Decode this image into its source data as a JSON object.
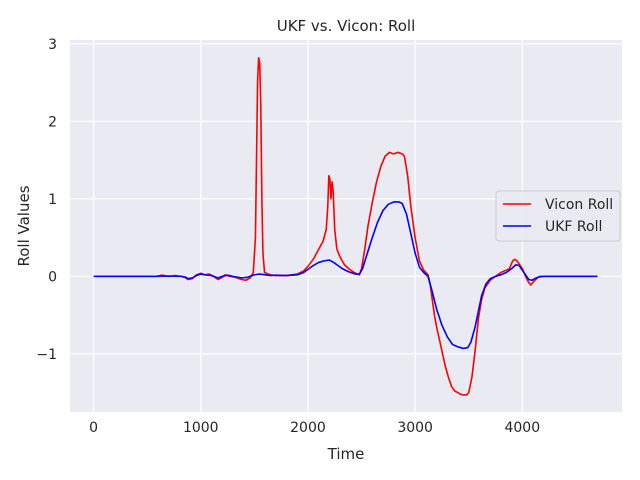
{
  "chart_data": {
    "type": "line",
    "title": "UKF vs. Vicon: Roll",
    "xlabel": "Time",
    "ylabel": "Roll Values",
    "xlim": [
      -220,
      4930
    ],
    "ylim": [
      -1.75,
      3.05
    ],
    "xticks": [
      0,
      1000,
      2000,
      3000,
      4000
    ],
    "xtick_labels": [
      "0",
      "1000",
      "2000",
      "3000",
      "4000"
    ],
    "yticks": [
      -1,
      0,
      1,
      2,
      3
    ],
    "ytick_labels": [
      "−1",
      "0",
      "1",
      "2",
      "3"
    ],
    "grid": true,
    "legend_position": "center-right",
    "series": [
      {
        "name": "Vicon Roll",
        "color": "#ff0000",
        "points": [
          [
            0,
            0.0
          ],
          [
            580,
            0.0
          ],
          [
            640,
            0.015
          ],
          [
            700,
            0.0
          ],
          [
            760,
            0.01
          ],
          [
            820,
            0.0
          ],
          [
            860,
            -0.02
          ],
          [
            880,
            -0.04
          ],
          [
            920,
            -0.03
          ],
          [
            960,
            0.02
          ],
          [
            1000,
            0.04
          ],
          [
            1040,
            0.02
          ],
          [
            1080,
            0.03
          ],
          [
            1120,
            0.0
          ],
          [
            1160,
            -0.04
          ],
          [
            1190,
            -0.02
          ],
          [
            1230,
            0.02
          ],
          [
            1270,
            0.0
          ],
          [
            1320,
            -0.01
          ],
          [
            1380,
            -0.04
          ],
          [
            1420,
            -0.05
          ],
          [
            1460,
            -0.02
          ],
          [
            1490,
            0.05
          ],
          [
            1510,
            0.5
          ],
          [
            1520,
            1.5
          ],
          [
            1530,
            2.5
          ],
          [
            1540,
            2.82
          ],
          [
            1550,
            2.75
          ],
          [
            1560,
            2.2
          ],
          [
            1570,
            1.0
          ],
          [
            1580,
            0.3
          ],
          [
            1595,
            0.05
          ],
          [
            1650,
            0.02
          ],
          [
            1700,
            0.01
          ],
          [
            1800,
            0.01
          ],
          [
            1900,
            0.03
          ],
          [
            1960,
            0.07
          ],
          [
            2000,
            0.13
          ],
          [
            2050,
            0.22
          ],
          [
            2100,
            0.35
          ],
          [
            2140,
            0.45
          ],
          [
            2170,
            0.6
          ],
          [
            2185,
            0.9
          ],
          [
            2195,
            1.3
          ],
          [
            2205,
            1.25
          ],
          [
            2215,
            1.0
          ],
          [
            2225,
            1.22
          ],
          [
            2235,
            1.1
          ],
          [
            2250,
            0.6
          ],
          [
            2270,
            0.35
          ],
          [
            2300,
            0.25
          ],
          [
            2340,
            0.15
          ],
          [
            2380,
            0.1
          ],
          [
            2420,
            0.06
          ],
          [
            2460,
            0.03
          ],
          [
            2480,
            0.02
          ],
          [
            2500,
            0.1
          ],
          [
            2530,
            0.35
          ],
          [
            2560,
            0.65
          ],
          [
            2600,
            0.95
          ],
          [
            2640,
            1.22
          ],
          [
            2680,
            1.42
          ],
          [
            2720,
            1.55
          ],
          [
            2760,
            1.6
          ],
          [
            2800,
            1.58
          ],
          [
            2840,
            1.6
          ],
          [
            2880,
            1.58
          ],
          [
            2900,
            1.55
          ],
          [
            2930,
            1.3
          ],
          [
            2960,
            0.9
          ],
          [
            3000,
            0.5
          ],
          [
            3040,
            0.2
          ],
          [
            3080,
            0.08
          ],
          [
            3120,
            0.02
          ],
          [
            3140,
            -0.1
          ],
          [
            3160,
            -0.3
          ],
          [
            3180,
            -0.5
          ],
          [
            3200,
            -0.65
          ],
          [
            3240,
            -0.9
          ],
          [
            3280,
            -1.15
          ],
          [
            3310,
            -1.3
          ],
          [
            3340,
            -1.42
          ],
          [
            3370,
            -1.48
          ],
          [
            3400,
            -1.5
          ],
          [
            3420,
            -1.52
          ],
          [
            3450,
            -1.53
          ],
          [
            3480,
            -1.53
          ],
          [
            3500,
            -1.5
          ],
          [
            3530,
            -1.3
          ],
          [
            3560,
            -0.95
          ],
          [
            3590,
            -0.55
          ],
          [
            3620,
            -0.3
          ],
          [
            3650,
            -0.15
          ],
          [
            3700,
            -0.05
          ],
          [
            3750,
            0.0
          ],
          [
            3800,
            0.05
          ],
          [
            3850,
            0.08
          ],
          [
            3880,
            0.1
          ],
          [
            3910,
            0.2
          ],
          [
            3930,
            0.22
          ],
          [
            3950,
            0.2
          ],
          [
            3970,
            0.16
          ],
          [
            4000,
            0.1
          ],
          [
            4030,
            0.0
          ],
          [
            4060,
            -0.08
          ],
          [
            4080,
            -0.11
          ],
          [
            4110,
            -0.06
          ],
          [
            4150,
            -0.01
          ],
          [
            4200,
            0.0
          ],
          [
            4700,
            0.0
          ]
        ]
      },
      {
        "name": "UKF Roll",
        "color": "#0000ff",
        "points": [
          [
            0,
            0.0
          ],
          [
            600,
            0.0
          ],
          [
            700,
            0.005
          ],
          [
            820,
            0.0
          ],
          [
            860,
            -0.01
          ],
          [
            880,
            -0.03
          ],
          [
            920,
            -0.02
          ],
          [
            960,
            0.01
          ],
          [
            1000,
            0.03
          ],
          [
            1040,
            0.02
          ],
          [
            1100,
            0.01
          ],
          [
            1160,
            -0.02
          ],
          [
            1200,
            0.0
          ],
          [
            1250,
            0.015
          ],
          [
            1300,
            0.0
          ],
          [
            1380,
            -0.02
          ],
          [
            1440,
            -0.01
          ],
          [
            1500,
            0.02
          ],
          [
            1550,
            0.03
          ],
          [
            1600,
            0.02
          ],
          [
            1650,
            0.01
          ],
          [
            1700,
            0.015
          ],
          [
            1800,
            0.01
          ],
          [
            1900,
            0.02
          ],
          [
            1960,
            0.05
          ],
          [
            2000,
            0.09
          ],
          [
            2050,
            0.14
          ],
          [
            2100,
            0.18
          ],
          [
            2150,
            0.2
          ],
          [
            2200,
            0.21
          ],
          [
            2240,
            0.18
          ],
          [
            2280,
            0.14
          ],
          [
            2320,
            0.1
          ],
          [
            2380,
            0.06
          ],
          [
            2440,
            0.03
          ],
          [
            2480,
            0.03
          ],
          [
            2510,
            0.1
          ],
          [
            2550,
            0.28
          ],
          [
            2600,
            0.5
          ],
          [
            2650,
            0.7
          ],
          [
            2700,
            0.85
          ],
          [
            2750,
            0.93
          ],
          [
            2800,
            0.96
          ],
          [
            2850,
            0.96
          ],
          [
            2880,
            0.94
          ],
          [
            2920,
            0.8
          ],
          [
            2960,
            0.55
          ],
          [
            3000,
            0.3
          ],
          [
            3040,
            0.12
          ],
          [
            3080,
            0.05
          ],
          [
            3120,
            0.0
          ],
          [
            3160,
            -0.2
          ],
          [
            3200,
            -0.42
          ],
          [
            3250,
            -0.63
          ],
          [
            3300,
            -0.78
          ],
          [
            3350,
            -0.88
          ],
          [
            3400,
            -0.91
          ],
          [
            3450,
            -0.93
          ],
          [
            3490,
            -0.92
          ],
          [
            3520,
            -0.85
          ],
          [
            3560,
            -0.65
          ],
          [
            3590,
            -0.45
          ],
          [
            3620,
            -0.25
          ],
          [
            3660,
            -0.1
          ],
          [
            3700,
            -0.03
          ],
          [
            3750,
            0.0
          ],
          [
            3800,
            0.02
          ],
          [
            3850,
            0.05
          ],
          [
            3900,
            0.1
          ],
          [
            3940,
            0.15
          ],
          [
            3970,
            0.14
          ],
          [
            4000,
            0.08
          ],
          [
            4030,
            0.02
          ],
          [
            4060,
            -0.04
          ],
          [
            4090,
            -0.05
          ],
          [
            4130,
            -0.02
          ],
          [
            4170,
            0.0
          ],
          [
            4700,
            0.0
          ]
        ]
      }
    ]
  }
}
